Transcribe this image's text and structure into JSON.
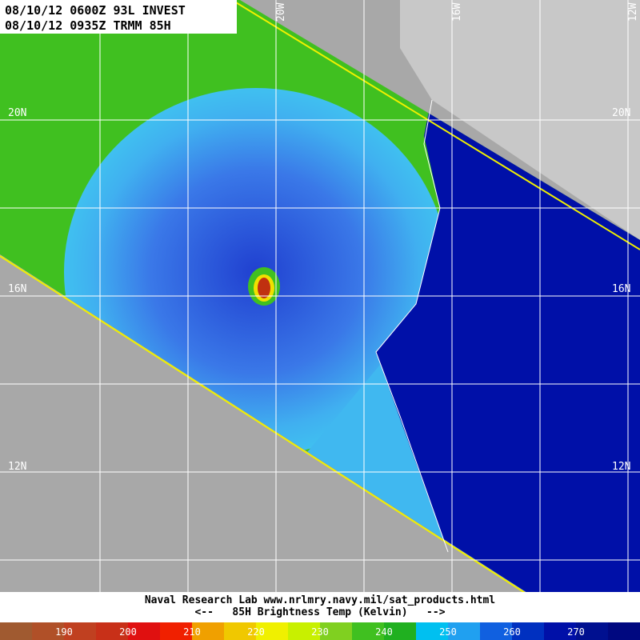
{
  "header": {
    "line1": "08/10/12 0600Z 93L INVEST",
    "line2": "08/10/12 0935Z TRMM 85H"
  },
  "grid_labels": {
    "lon": [
      "20W",
      "16W",
      "12W"
    ],
    "lat": [
      "20N",
      "16N",
      "12N"
    ]
  },
  "footer": {
    "credit": "Naval Research Lab  www.nrlmry.navy.mil/sat_products.html",
    "legend_title": "<--   85H Brightness Temp (Kelvin)   -->"
  },
  "colorbar": {
    "labels": [
      190,
      200,
      210,
      220,
      230,
      240,
      250,
      260,
      270
    ]
  }
}
